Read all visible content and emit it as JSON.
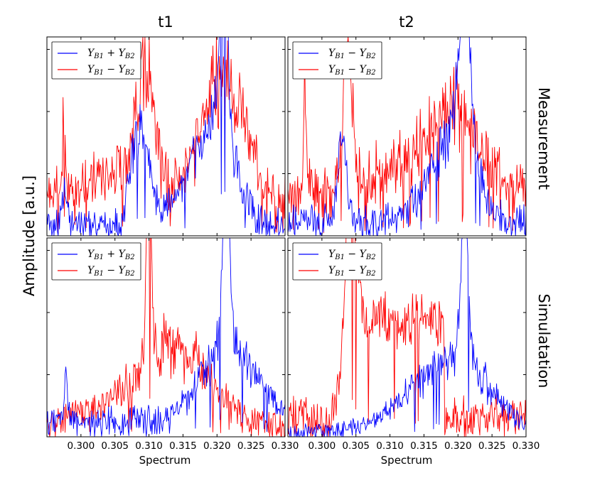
{
  "chart_data": {
    "type": "line",
    "ylabel": "Amplitude [a.u.]",
    "xlabel": "Spectrum",
    "xlim": [
      0.295,
      0.33
    ],
    "ylim": [
      0,
      1.0
    ],
    "x_ticks": [
      "0.300",
      "0.305",
      "0.310",
      "0.315",
      "0.320",
      "0.325",
      "0.330"
    ],
    "x_tick_values": [
      0.3,
      0.305,
      0.31,
      0.315,
      0.32,
      0.325,
      0.33
    ],
    "column_titles": [
      "t1",
      "t2"
    ],
    "row_titles": [
      "Measurement",
      "Simulatation"
    ],
    "colors": {
      "blue": "#0000ff",
      "red": "#ff0000"
    },
    "panels": [
      {
        "id": "meas-t1",
        "legend": [
          "Y_{B1} + Y_{B2}",
          "Y_{B1} − Y_{B2}"
        ],
        "series": [
          {
            "name": "Y_{B1} + Y_{B2}",
            "color": "blue",
            "baseline": 0.06,
            "noise": 0.07,
            "peaks": [
              [
                0.3088,
                0.55,
                0.0012
              ],
              [
                0.321,
                0.98,
                0.0006
              ],
              [
                0.3205,
                0.4,
                0.0025
              ],
              [
                0.317,
                0.25,
                0.003
              ],
              [
                0.2975,
                0.15,
                0.0004
              ]
            ]
          },
          {
            "name": "Y_{B1} − Y_{B2}",
            "color": "red",
            "baseline": 0.2,
            "noise": 0.1,
            "peaks": [
              [
                0.3095,
                0.62,
                0.0013
              ],
              [
                0.3215,
                0.55,
                0.0028
              ],
              [
                0.318,
                0.18,
                0.003
              ],
              [
                0.2975,
                0.45,
                0.0002
              ],
              [
                0.305,
                0.15,
                0.003
              ]
            ]
          }
        ]
      },
      {
        "id": "meas-t2",
        "legend": [
          "Y_{B1} − Y_{B2}",
          "Y_{B1} − Y_{B2}"
        ],
        "series": [
          {
            "name": "Y_{B1} − Y_{B2}",
            "color": "blue",
            "baseline": 0.07,
            "noise": 0.07,
            "peaks": [
              [
                0.321,
                0.88,
                0.0007
              ],
              [
                0.3205,
                0.42,
                0.0025
              ],
              [
                0.303,
                0.45,
                0.0006
              ],
              [
                0.317,
                0.2,
                0.003
              ]
            ]
          },
          {
            "name": "Y_{B1} − Y_{B2}",
            "color": "red",
            "baseline": 0.22,
            "noise": 0.1,
            "peaks": [
              [
                0.3038,
                0.72,
                0.0007
              ],
              [
                0.3195,
                0.45,
                0.0035
              ],
              [
                0.2975,
                0.6,
                0.0002
              ],
              [
                0.312,
                0.12,
                0.004
              ]
            ]
          }
        ]
      },
      {
        "id": "sim-t1",
        "legend": [
          "Y_{B1} + Y_{B2}",
          "Y_{B1} − Y_{B2}"
        ],
        "series": [
          {
            "name": "Y_{B1} + Y_{B2}",
            "color": "blue",
            "baseline": 0.08,
            "noise": 0.05,
            "peaks": [
              [
                0.3213,
                0.92,
                0.0005
              ],
              [
                0.321,
                0.38,
                0.0035
              ],
              [
                0.3255,
                0.1,
                0.003
              ],
              [
                0.2978,
                0.3,
                0.0002
              ]
            ]
          },
          {
            "name": "Y_{B1} − Y_{B2}",
            "color": "red",
            "baseline": 0.05,
            "noise": 0.07,
            "peaks": [
              [
                0.31,
                0.95,
                0.00035
              ],
              [
                0.313,
                0.45,
                0.0055
              ],
              [
                0.3,
                0.05,
                0.003
              ]
            ]
          }
        ]
      },
      {
        "id": "sim-t2",
        "legend": [
          "Y_{B1} − Y_{B2}",
          "Y_{B1} − Y_{B2}"
        ],
        "series": [
          {
            "name": "Y_{B1} − Y_{B2}",
            "color": "blue",
            "baseline": 0.02,
            "noise": 0.04,
            "peaks": [
              [
                0.321,
                0.9,
                0.0005
              ],
              [
                0.32,
                0.32,
                0.005
              ],
              [
                0.315,
                0.12,
                0.006
              ]
            ]
          },
          {
            "name": "Y_{B1} − Y_{B2}",
            "color": "red",
            "baseline": 0.1,
            "noise": 0.09,
            "peaks": [
              [
                0.304,
                0.82,
                0.0009
              ]
            ],
            "plateau": [
              0.3035,
              0.318,
              0.62
            ]
          }
        ]
      }
    ]
  }
}
